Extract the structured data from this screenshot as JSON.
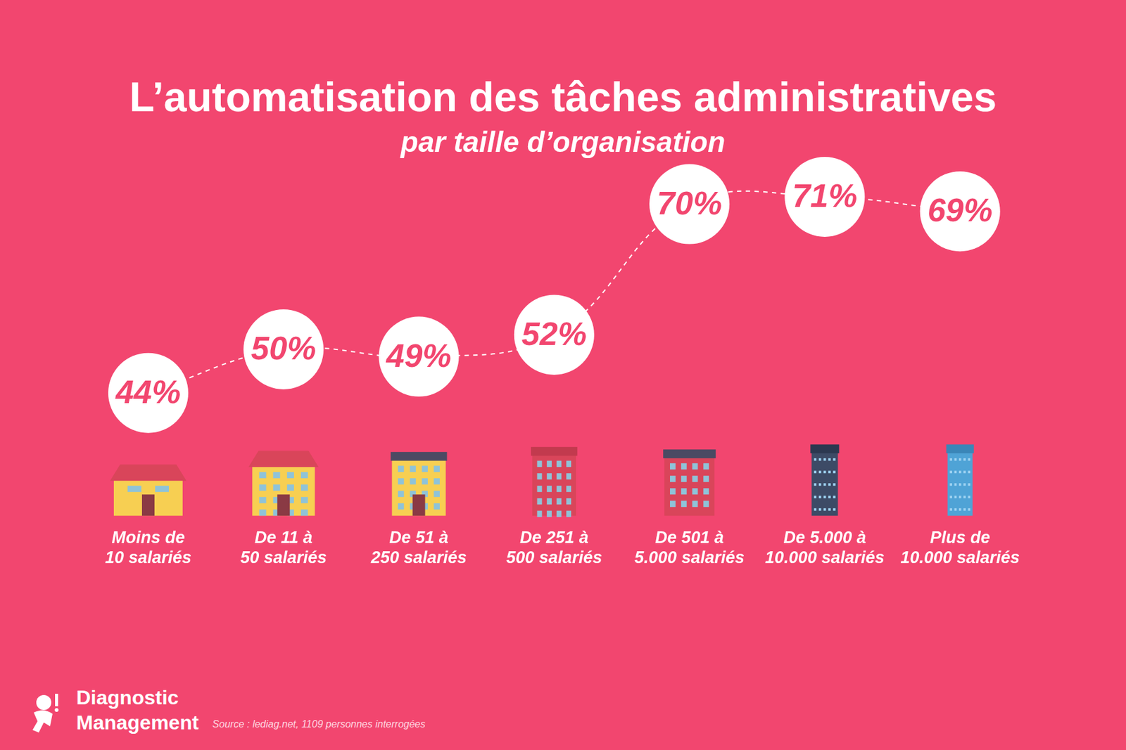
{
  "chart_data": {
    "type": "line",
    "title": "L’automatisation des tâches administratives",
    "subtitle": "par taille d’organisation",
    "categories": [
      "Moins de 10 salariés",
      "De 11 à 50 salariés",
      "De 51 à 250 salariés",
      "De 251 à 500 salariés",
      "De 501 à 5.000 salariés",
      "De 5.000 à 10.000 salariés",
      "Plus de 10.000 salariés"
    ],
    "values": [
      44,
      50,
      49,
      52,
      70,
      71,
      69
    ],
    "value_labels": [
      "44%",
      "50%",
      "49%",
      "52%",
      "70%",
      "71%",
      "69%"
    ],
    "data_labels": true,
    "tick_labels": "x",
    "grid": false,
    "color": "#ffffff",
    "line_style": "dashed"
  },
  "footer": {
    "brand": "Diagnostic Management",
    "source": "Source : lediag.net, 1109 personnes interrogées"
  }
}
